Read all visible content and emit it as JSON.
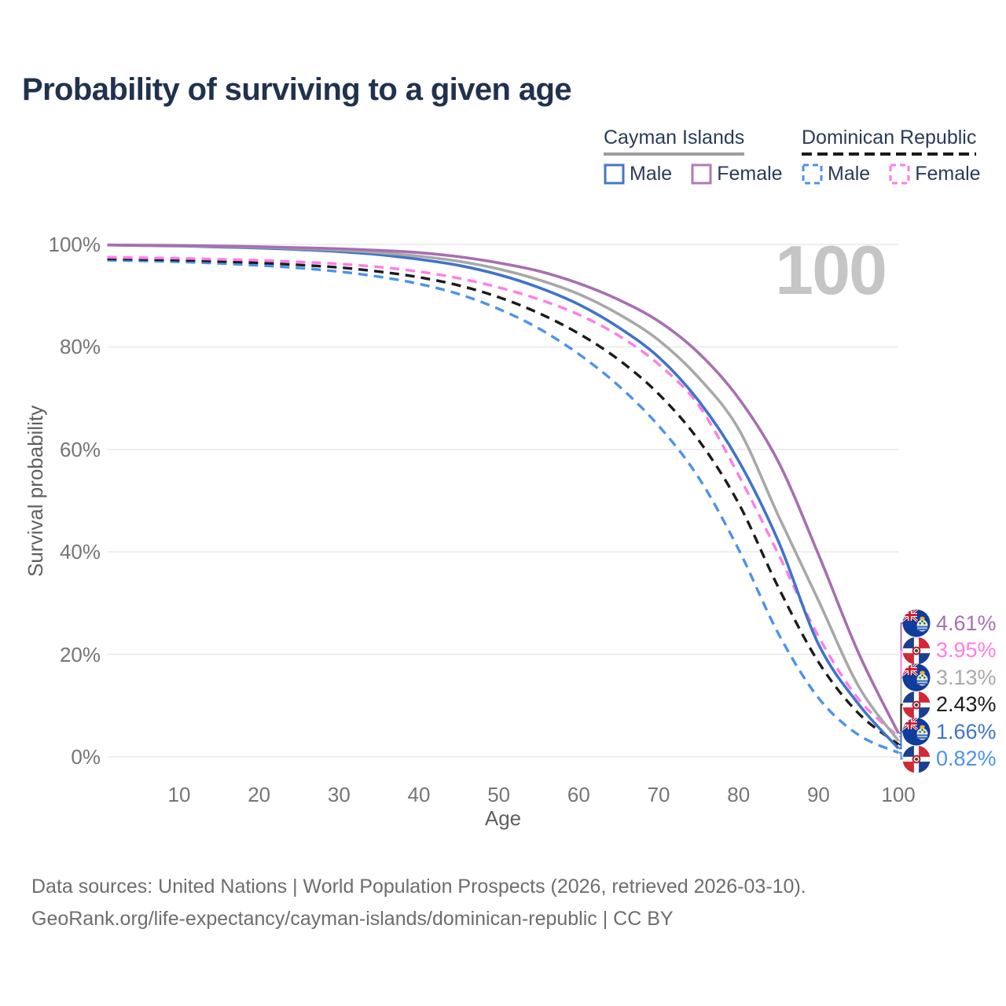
{
  "title": "Probability of surviving to a given age",
  "watermark": "100",
  "legend": {
    "groups": [
      {
        "name": "Cayman Islands",
        "underline_style": "solid",
        "underline_color": "#9e9e9e",
        "items": [
          {
            "label": "Male",
            "color": "#4478c4",
            "style": "solid"
          },
          {
            "label": "Female",
            "color": "#b07ab5",
            "style": "solid"
          }
        ]
      },
      {
        "name": "Dominican Republic",
        "underline_style": "dashed",
        "underline_color": "#1a1a1a",
        "items": [
          {
            "label": "Male",
            "color": "#4b93ea",
            "style": "dashed"
          },
          {
            "label": "Female",
            "color": "#ff7de5",
            "style": "dashed"
          }
        ]
      }
    ]
  },
  "y_axis": {
    "label": "Survival probability",
    "ticks": [
      "100%",
      "80%",
      "60%",
      "40%",
      "20%",
      "0%"
    ],
    "tick_values": [
      100,
      80,
      60,
      40,
      20,
      0
    ]
  },
  "x_axis": {
    "label": "Age",
    "ticks": [
      10,
      20,
      30,
      40,
      50,
      60,
      70,
      80,
      90,
      100
    ]
  },
  "footer": {
    "line1": "Data sources: United Nations | World Population Prospects (2026, retrieved 2026-03-10).",
    "line2": "GeoRank.org/life-expectancy/cayman-islands/dominican-republic | CC BY"
  },
  "chart_data": {
    "type": "line",
    "title": "Probability of surviving to a given age",
    "xlabel": "Age",
    "ylabel": "Survival probability",
    "xlim": [
      0,
      100
    ],
    "ylim": [
      0,
      100
    ],
    "grid": "horizontal-only",
    "legend_position": "top-right",
    "x": [
      1,
      5,
      10,
      15,
      20,
      25,
      30,
      35,
      40,
      45,
      50,
      55,
      60,
      65,
      70,
      75,
      80,
      85,
      90,
      95,
      100
    ],
    "series": [
      {
        "name": "Cayman Islands Female",
        "style": "solid",
        "color": "#a86fb0",
        "flag": "ky",
        "end_label": "4.61%",
        "values": [
          99.9,
          99.85,
          99.8,
          99.7,
          99.55,
          99.35,
          99.15,
          98.85,
          98.4,
          97.6,
          96.4,
          94.8,
          92.4,
          89.2,
          85.0,
          78.8,
          70.0,
          57.5,
          39.5,
          20.3,
          4.61
        ]
      },
      {
        "name": "Cayman Islands Both sexes",
        "style": "solid",
        "color": "#a8a8a8",
        "flag": "ky",
        "end_label": "3.13%",
        "values": [
          99.9,
          99.85,
          99.75,
          99.6,
          99.45,
          99.2,
          98.9,
          98.4,
          97.7,
          96.7,
          95.2,
          93.1,
          90.3,
          86.4,
          81.3,
          74.0,
          64.0,
          47.0,
          30.5,
          13.8,
          3.13
        ]
      },
      {
        "name": "Cayman Islands Male",
        "style": "solid",
        "color": "#3f74c8",
        "flag": "ky",
        "end_label": "1.66%",
        "values": [
          99.9,
          99.8,
          99.7,
          99.5,
          99.3,
          99.0,
          98.6,
          98.0,
          97.1,
          95.9,
          94.1,
          91.6,
          88.3,
          83.8,
          78.0,
          69.5,
          57.8,
          42.0,
          22.0,
          10.3,
          1.66
        ]
      },
      {
        "name": "Dominican Republic Female",
        "style": "dashed",
        "color": "#ff7de5",
        "flag": "do",
        "end_label": "3.95%",
        "values": [
          97.5,
          97.4,
          97.3,
          97.1,
          96.9,
          96.6,
          96.2,
          95.6,
          94.7,
          93.4,
          91.6,
          89.3,
          86.3,
          82.2,
          76.6,
          68.6,
          55.0,
          39.5,
          23.5,
          11.3,
          3.95
        ]
      },
      {
        "name": "Dominican Republic Both sexes",
        "style": "dashed",
        "color": "#1b1b1b",
        "flag": "do",
        "end_label": "2.43%",
        "values": [
          97.2,
          97.1,
          96.95,
          96.7,
          96.4,
          96.0,
          95.5,
          94.7,
          93.6,
          92.0,
          89.7,
          86.6,
          82.6,
          77.5,
          70.8,
          61.8,
          49.5,
          33.0,
          18.5,
          8.5,
          2.43
        ]
      },
      {
        "name": "Dominican Republic Male",
        "style": "dashed",
        "color": "#4b93ea",
        "flag": "do",
        "end_label": "0.82%",
        "values": [
          96.9,
          96.8,
          96.6,
          96.3,
          95.9,
          95.4,
          94.7,
          93.7,
          92.3,
          90.3,
          87.4,
          83.6,
          78.6,
          72.4,
          64.6,
          54.5,
          40.5,
          24.0,
          11.5,
          4.3,
          0.82
        ]
      }
    ]
  }
}
